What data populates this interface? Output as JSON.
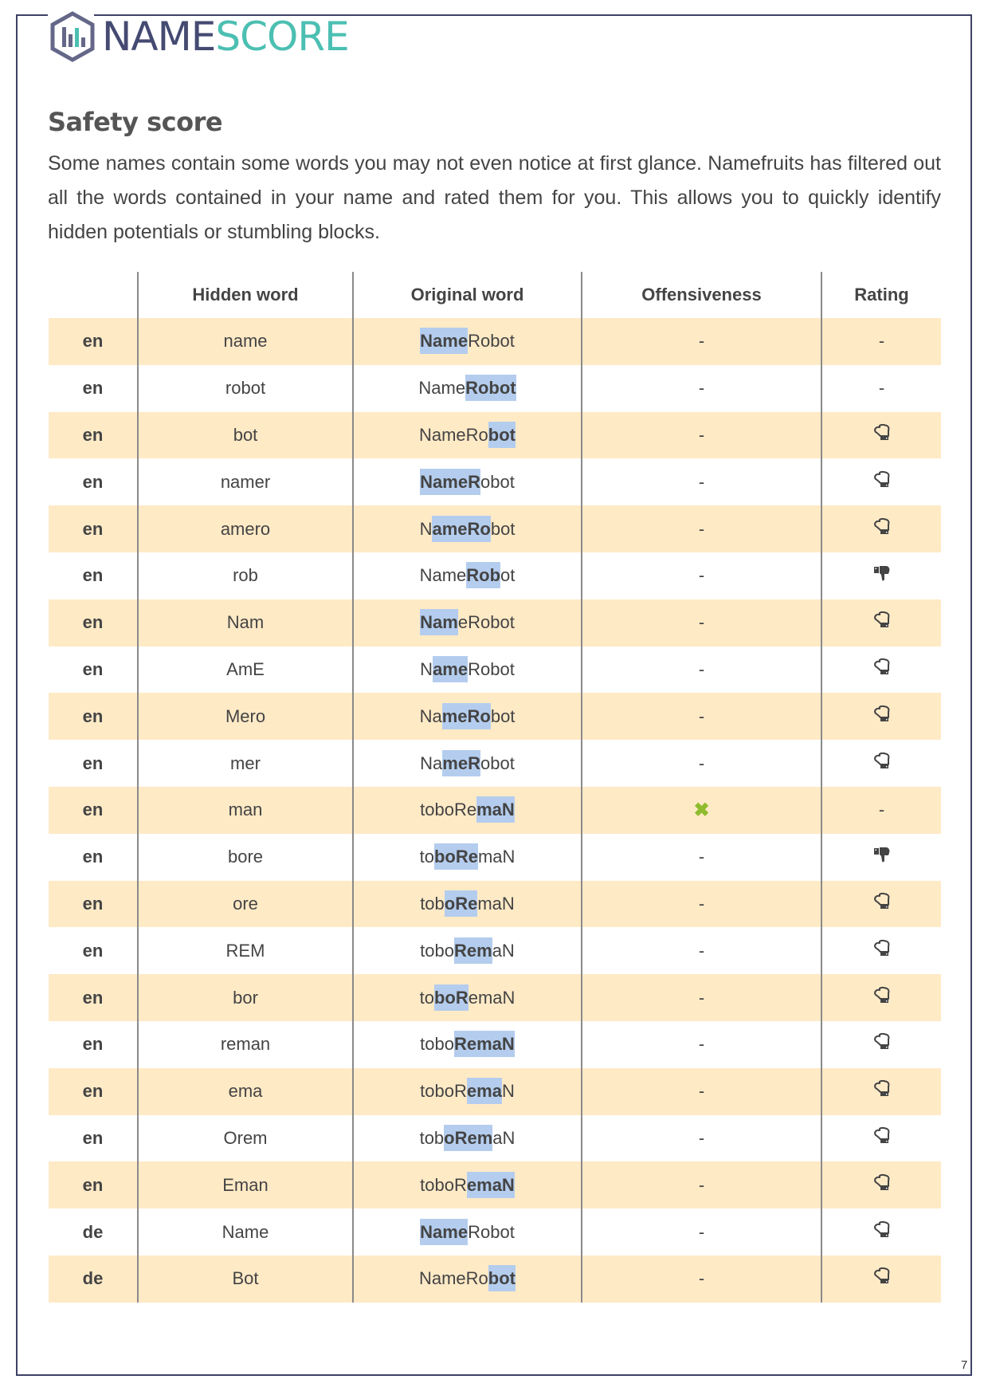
{
  "logo": {
    "part1": "NAME",
    "part2": "SCORE",
    "colors": {
      "dark": "#454a72",
      "teal": "#4bbfb2"
    }
  },
  "title": "Safety score",
  "intro": "Some names contain some words you may not even notice at first glance. Namefruits has filtered out all the words contained in your name and rated them for you. This allows you to quickly identify hidden potentials or stumbling blocks.",
  "table": {
    "headers": [
      "",
      "Hidden word",
      "Original word",
      "Offensiveness",
      "Rating"
    ],
    "rows": [
      {
        "lang": "en",
        "hidden": "name",
        "orig": [
          "",
          "Name",
          "Robot"
        ],
        "offensive": "-",
        "rating": "none"
      },
      {
        "lang": "en",
        "hidden": "robot",
        "orig": [
          "Name",
          "Robot",
          ""
        ],
        "offensive": "-",
        "rating": "none"
      },
      {
        "lang": "en",
        "hidden": "bot",
        "orig": [
          "NameRo",
          "bot",
          ""
        ],
        "offensive": "-",
        "rating": "neutral"
      },
      {
        "lang": "en",
        "hidden": "namer",
        "orig": [
          "",
          "NameR",
          "obot"
        ],
        "offensive": "-",
        "rating": "neutral"
      },
      {
        "lang": "en",
        "hidden": "amero",
        "orig": [
          "N",
          "ameRo",
          "bot"
        ],
        "offensive": "-",
        "rating": "neutral"
      },
      {
        "lang": "en",
        "hidden": "rob",
        "orig": [
          "Name",
          "Rob",
          "ot"
        ],
        "offensive": "-",
        "rating": "negative"
      },
      {
        "lang": "en",
        "hidden": "Nam",
        "orig": [
          "",
          "Nam",
          "eRobot"
        ],
        "offensive": "-",
        "rating": "neutral"
      },
      {
        "lang": "en",
        "hidden": "AmE",
        "orig": [
          "N",
          "ame",
          "Robot"
        ],
        "offensive": "-",
        "rating": "neutral"
      },
      {
        "lang": "en",
        "hidden": "Mero",
        "orig": [
          "Na",
          "meRo",
          "bot"
        ],
        "offensive": "-",
        "rating": "neutral"
      },
      {
        "lang": "en",
        "hidden": "mer",
        "orig": [
          "Na",
          "meR",
          "obot"
        ],
        "offensive": "-",
        "rating": "neutral"
      },
      {
        "lang": "en",
        "hidden": "man",
        "orig": [
          "toboRe",
          "maN",
          ""
        ],
        "offensive": "✖",
        "rating": "none"
      },
      {
        "lang": "en",
        "hidden": "bore",
        "orig": [
          "to",
          "boRe",
          "maN"
        ],
        "offensive": "-",
        "rating": "negative"
      },
      {
        "lang": "en",
        "hidden": "ore",
        "orig": [
          "tob",
          "oRe",
          "maN"
        ],
        "offensive": "-",
        "rating": "neutral"
      },
      {
        "lang": "en",
        "hidden": "REM",
        "orig": [
          "tobo",
          "Rem",
          "aN"
        ],
        "offensive": "-",
        "rating": "neutral"
      },
      {
        "lang": "en",
        "hidden": "bor",
        "orig": [
          "to",
          "boR",
          "emaN"
        ],
        "offensive": "-",
        "rating": "neutral"
      },
      {
        "lang": "en",
        "hidden": "reman",
        "orig": [
          "tobo",
          "RemaN",
          ""
        ],
        "offensive": "-",
        "rating": "neutral"
      },
      {
        "lang": "en",
        "hidden": "ema",
        "orig": [
          "toboR",
          "ema",
          "N"
        ],
        "offensive": "-",
        "rating": "neutral"
      },
      {
        "lang": "en",
        "hidden": "Orem",
        "orig": [
          "tob",
          "oRem",
          "aN"
        ],
        "offensive": "-",
        "rating": "neutral"
      },
      {
        "lang": "en",
        "hidden": "Eman",
        "orig": [
          "toboR",
          "emaN",
          ""
        ],
        "offensive": "-",
        "rating": "neutral"
      },
      {
        "lang": "de",
        "hidden": "Name",
        "orig": [
          "",
          "Name",
          "Robot"
        ],
        "offensive": "-",
        "rating": "neutral"
      },
      {
        "lang": "de",
        "hidden": "Bot",
        "orig": [
          "NameRo",
          "bot",
          ""
        ],
        "offensive": "-",
        "rating": "neutral"
      }
    ],
    "no_rating_text": "-"
  },
  "page_number": "7"
}
